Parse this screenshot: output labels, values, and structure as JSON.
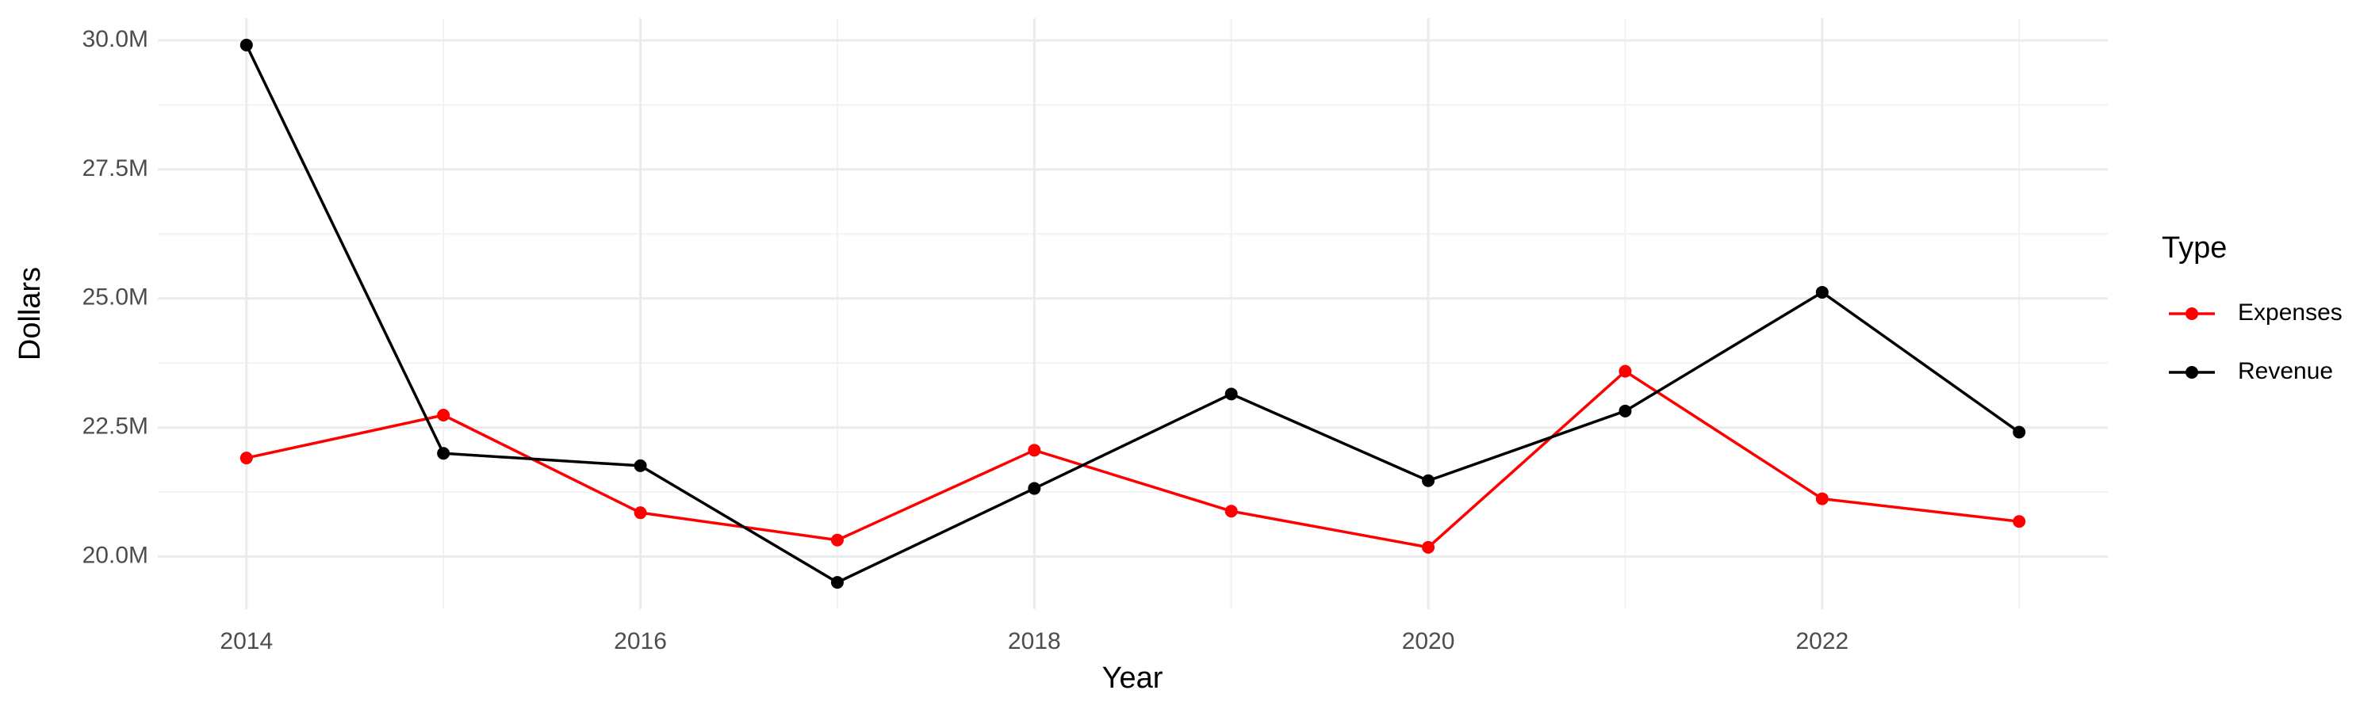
{
  "chart_data": {
    "type": "line",
    "x_label": "Year",
    "y_label": "Dollars",
    "legend_title": "Type",
    "x": [
      2014,
      2015,
      2016,
      2017,
      2018,
      2019,
      2020,
      2021,
      2022,
      2023
    ],
    "series": [
      {
        "name": "Expenses",
        "color": "#ff0000",
        "values": [
          21910000,
          22740000,
          20850000,
          20320000,
          22060000,
          20880000,
          20180000,
          23590000,
          21120000,
          20680000
        ]
      },
      {
        "name": "Revenue",
        "color": "#000000",
        "values": [
          29910000,
          22000000,
          21760000,
          19500000,
          21320000,
          23150000,
          21470000,
          22820000,
          25120000,
          22410000
        ]
      }
    ],
    "xlim": [
      2013.55,
      2023.45
    ],
    "xticks": [
      2014,
      2016,
      2018,
      2020,
      2022
    ],
    "ylim": [
      18980000,
      30430000
    ],
    "yticks": [
      {
        "value": 20000000,
        "label": "20.0M"
      },
      {
        "value": 22500000,
        "label": "22.5M"
      },
      {
        "value": 25000000,
        "label": "25.0M"
      },
      {
        "value": 27500000,
        "label": "27.5M"
      },
      {
        "value": 30000000,
        "label": "30.0M"
      }
    ],
    "grid": true,
    "legend_position": "right"
  }
}
